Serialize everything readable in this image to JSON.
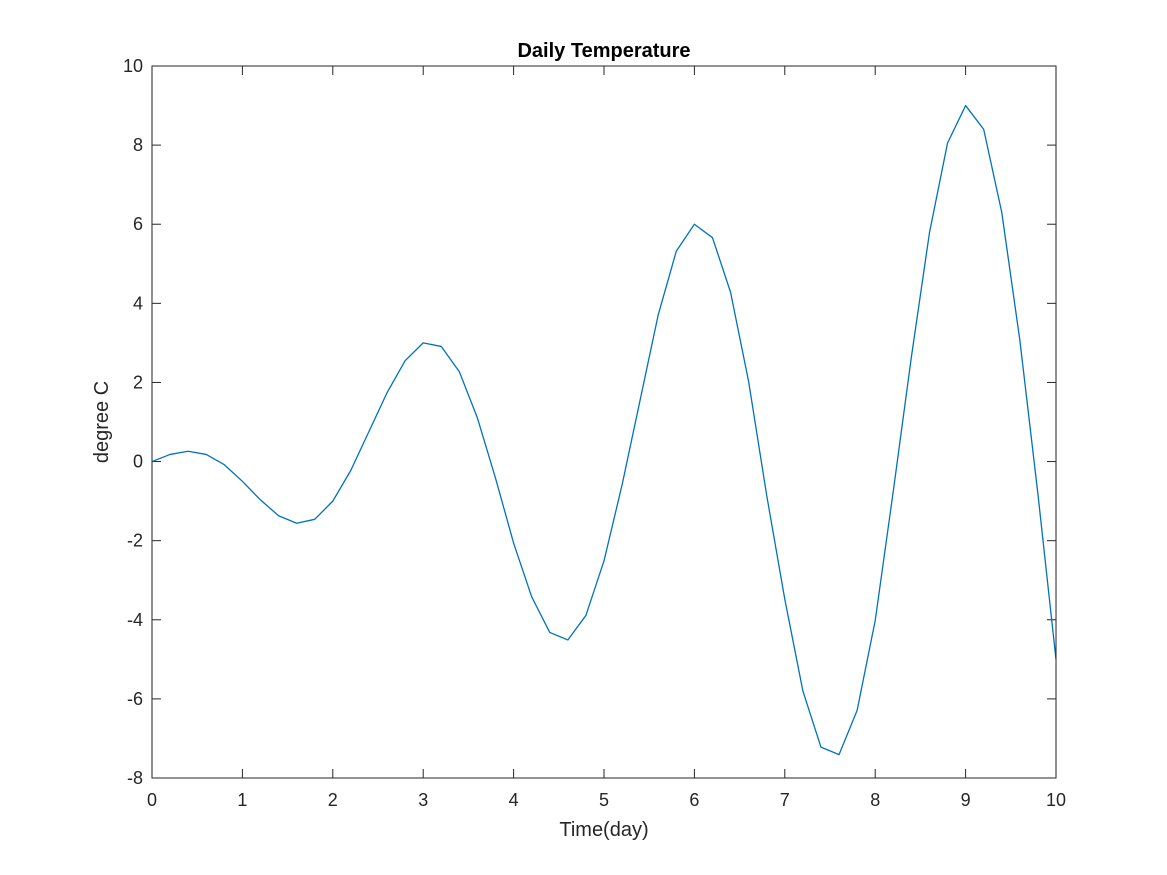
{
  "chart_data": {
    "type": "line",
    "title": "Daily Temperature",
    "xlabel": "Time(day)",
    "ylabel": "degree C",
    "xlim": [
      0,
      10
    ],
    "ylim": [
      -8,
      10
    ],
    "xticks": [
      0,
      1,
      2,
      3,
      4,
      5,
      6,
      7,
      8,
      9,
      10
    ],
    "yticks": [
      -8,
      -6,
      -4,
      -2,
      0,
      2,
      4,
      6,
      8,
      10
    ],
    "xtick_labels": [
      "0",
      "1",
      "2",
      "3",
      "4",
      "5",
      "6",
      "7",
      "8",
      "9",
      "10"
    ],
    "ytick_labels": [
      "-8",
      "-6",
      "-4",
      "-2",
      "0",
      "2",
      "4",
      "6",
      "8",
      "10"
    ],
    "grid": false,
    "series_color": "#0072BD",
    "series": [
      {
        "x": [
          0,
          0.2,
          0.4,
          0.6,
          0.8,
          1.0,
          1.2,
          1.4,
          1.6,
          1.8,
          2.0,
          2.2,
          2.4,
          2.6,
          2.8,
          3.0,
          3.2,
          3.4,
          3.6,
          3.8,
          4.0,
          4.2,
          4.4,
          4.6,
          4.8,
          5.0,
          5.2,
          5.4,
          5.6,
          5.8,
          6.0,
          6.2,
          6.4,
          6.6,
          6.8,
          7.0,
          7.2,
          7.4,
          7.6,
          7.8,
          8.0,
          8.2,
          8.4,
          8.6,
          8.8,
          9.0,
          9.2,
          9.4,
          9.6,
          9.8,
          10.0
        ],
        "values": [
          0,
          0.18,
          0.26,
          0.18,
          -0.08,
          -0.5,
          -0.97,
          -1.37,
          -1.56,
          -1.46,
          -1.0,
          -0.22,
          0.76,
          1.74,
          2.55,
          3.0,
          2.91,
          2.27,
          1.1,
          -0.42,
          -2.06,
          -3.42,
          -4.32,
          -4.51,
          -3.89,
          -2.51,
          -0.59,
          1.56,
          3.71,
          5.32,
          6.0,
          5.66,
          4.28,
          2.02,
          -0.86,
          -3.48,
          -5.8,
          -7.22,
          -7.41,
          -6.29,
          -4.02,
          -0.75,
          2.64,
          5.78,
          8.05,
          9.0,
          8.4,
          6.3,
          3.07,
          -0.82,
          -5.0
        ]
      }
    ]
  }
}
